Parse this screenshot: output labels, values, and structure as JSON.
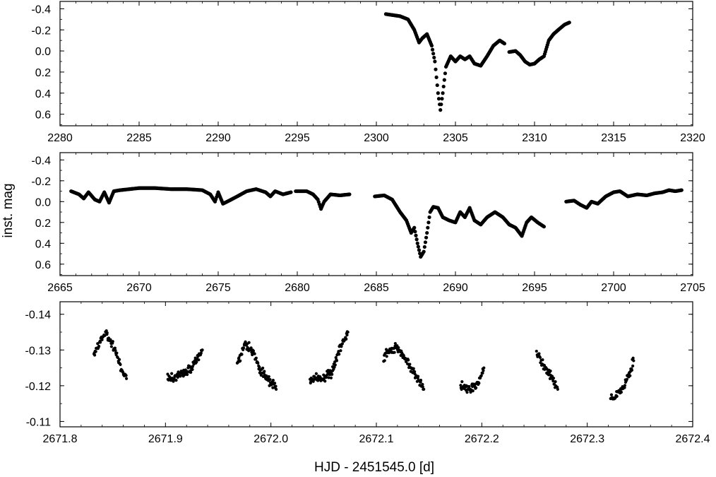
{
  "figure": {
    "ylabel": "inst. mag",
    "xlabel": "HJD - 2451545.0 [d]"
  },
  "chart_data": [
    {
      "type": "scatter",
      "xlim": [
        2280,
        2320
      ],
      "ylim": [
        -0.47,
        0.71
      ],
      "y_inverted": true,
      "xticks": [
        2280,
        2285,
        2290,
        2295,
        2300,
        2305,
        2310,
        2315,
        2320
      ],
      "xtick_labels": [
        "2280",
        "2285",
        "2290",
        "2295",
        "2300",
        "2305",
        "2310",
        "2315",
        "2320"
      ],
      "yticks": [
        -0.4,
        -0.2,
        0.0,
        0.2,
        0.4,
        0.6
      ],
      "ytick_labels": [
        "-0.4",
        "-0.2",
        "0.0",
        "0.2",
        "0.4",
        "0.6"
      ],
      "marker_size": 2.6,
      "point_step": 0.045,
      "series": [
        {
          "segments": [
            [
              [
                2300.6,
                -0.35
              ],
              [
                2301.5,
                -0.33
              ],
              [
                2302.0,
                -0.3
              ],
              [
                2302.4,
                -0.2
              ],
              [
                2302.7,
                -0.08
              ],
              [
                2302.9,
                -0.12
              ],
              [
                2303.2,
                -0.16
              ],
              [
                2303.5,
                -0.05
              ],
              [
                2303.7,
                0.1
              ],
              [
                2303.9,
                0.4
              ],
              [
                2304.05,
                0.56
              ],
              [
                2304.2,
                0.4
              ],
              [
                2304.4,
                0.15
              ],
              [
                2304.7,
                0.05
              ],
              [
                2305.0,
                0.1
              ],
              [
                2305.3,
                0.05
              ],
              [
                2305.6,
                0.08
              ],
              [
                2305.9,
                0.05
              ],
              [
                2306.2,
                0.12
              ],
              [
                2306.6,
                0.14
              ],
              [
                2307.0,
                0.05
              ],
              [
                2307.4,
                -0.05
              ],
              [
                2307.8,
                -0.1
              ],
              [
                2308.1,
                -0.07
              ]
            ],
            [
              [
                2308.4,
                0.01
              ],
              [
                2308.8,
                0.0
              ],
              [
                2309.1,
                0.04
              ],
              [
                2309.4,
                0.1
              ],
              [
                2309.7,
                0.13
              ],
              [
                2310.0,
                0.12
              ],
              [
                2310.3,
                0.08
              ],
              [
                2310.6,
                0.05
              ],
              [
                2310.9,
                -0.1
              ],
              [
                2311.2,
                -0.16
              ],
              [
                2311.5,
                -0.2
              ],
              [
                2311.9,
                -0.25
              ],
              [
                2312.2,
                -0.27
              ]
            ]
          ]
        }
      ]
    },
    {
      "type": "scatter",
      "xlim": [
        2665,
        2705
      ],
      "ylim": [
        -0.47,
        0.71
      ],
      "y_inverted": true,
      "xticks": [
        2665,
        2670,
        2675,
        2680,
        2685,
        2690,
        2695,
        2700,
        2705
      ],
      "xtick_labels": [
        "2665",
        "2670",
        "2675",
        "2680",
        "2685",
        "2690",
        "2695",
        "2700",
        "2705"
      ],
      "yticks": [
        -0.4,
        -0.2,
        0.0,
        0.2,
        0.4,
        0.6
      ],
      "ytick_labels": [
        "-0.4",
        "-0.2",
        "0.0",
        "0.2",
        "0.4",
        "0.6"
      ],
      "marker_size": 2.6,
      "point_step": 0.045,
      "series": [
        {
          "segments": [
            [
              [
                2665.7,
                -0.1
              ],
              [
                2666.2,
                -0.07
              ],
              [
                2666.5,
                -0.03
              ],
              [
                2666.8,
                -0.09
              ],
              [
                2667.2,
                -0.02
              ],
              [
                2667.5,
                0.0
              ],
              [
                2667.8,
                -0.09
              ],
              [
                2668.1,
                0.01
              ],
              [
                2668.4,
                -0.1
              ],
              [
                2668.8,
                -0.11
              ],
              [
                2669.4,
                -0.12
              ],
              [
                2670.0,
                -0.13
              ],
              [
                2671.0,
                -0.13
              ],
              [
                2672.0,
                -0.12
              ],
              [
                2673.0,
                -0.12
              ],
              [
                2674.0,
                -0.11
              ],
              [
                2674.5,
                -0.07
              ],
              [
                2674.8,
                0.0
              ],
              [
                2675.0,
                -0.09
              ],
              [
                2675.3,
                0.02
              ],
              [
                2675.7,
                -0.01
              ],
              [
                2676.2,
                -0.05
              ],
              [
                2676.8,
                -0.1
              ],
              [
                2677.4,
                -0.12
              ],
              [
                2678.0,
                -0.09
              ],
              [
                2678.3,
                -0.05
              ],
              [
                2678.6,
                -0.1
              ],
              [
                2679.1,
                -0.07
              ],
              [
                2679.6,
                -0.09
              ]
            ],
            [
              [
                2679.9,
                -0.1
              ],
              [
                2680.6,
                -0.1
              ],
              [
                2681.0,
                -0.07
              ],
              [
                2681.3,
                -0.02
              ],
              [
                2681.5,
                0.07
              ],
              [
                2681.7,
                0.0
              ],
              [
                2682.1,
                -0.07
              ],
              [
                2682.7,
                -0.06
              ],
              [
                2683.3,
                -0.07
              ]
            ],
            [
              [
                2684.9,
                -0.05
              ],
              [
                2685.5,
                -0.06
              ],
              [
                2686.0,
                -0.02
              ],
              [
                2686.5,
                0.1
              ],
              [
                2686.9,
                0.18
              ],
              [
                2687.2,
                0.3
              ],
              [
                2687.4,
                0.25
              ],
              [
                2687.6,
                0.4
              ],
              [
                2687.8,
                0.53
              ],
              [
                2688.0,
                0.48
              ],
              [
                2688.2,
                0.3
              ],
              [
                2688.4,
                0.1
              ],
              [
                2688.6,
                0.05
              ],
              [
                2688.9,
                0.06
              ],
              [
                2689.2,
                0.15
              ],
              [
                2689.6,
                0.18
              ],
              [
                2690.0,
                0.2
              ],
              [
                2690.3,
                0.1
              ],
              [
                2690.6,
                0.15
              ],
              [
                2690.9,
                0.06
              ],
              [
                2691.2,
                0.18
              ],
              [
                2691.6,
                0.22
              ],
              [
                2692.0,
                0.15
              ],
              [
                2692.5,
                0.1
              ],
              [
                2693.0,
                0.15
              ],
              [
                2693.4,
                0.22
              ],
              [
                2693.8,
                0.25
              ],
              [
                2694.2,
                0.33
              ],
              [
                2694.5,
                0.2
              ],
              [
                2694.8,
                0.15
              ],
              [
                2695.2,
                0.2
              ],
              [
                2695.6,
                0.24
              ]
            ],
            [
              [
                2697.0,
                0.0
              ],
              [
                2697.5,
                -0.01
              ],
              [
                2697.9,
                0.03
              ],
              [
                2698.3,
                0.06
              ],
              [
                2698.6,
                0.0
              ],
              [
                2699.0,
                0.02
              ],
              [
                2699.5,
                -0.05
              ],
              [
                2700.0,
                -0.09
              ],
              [
                2700.4,
                -0.1
              ],
              [
                2700.9,
                -0.05
              ],
              [
                2701.5,
                -0.07
              ],
              [
                2702.1,
                -0.06
              ],
              [
                2702.6,
                -0.08
              ],
              [
                2703.1,
                -0.09
              ],
              [
                2703.5,
                -0.11
              ],
              [
                2703.9,
                -0.1
              ],
              [
                2704.3,
                -0.11
              ]
            ]
          ]
        }
      ]
    },
    {
      "type": "scatter",
      "xlim": [
        2671.8,
        2672.4
      ],
      "ylim": [
        -0.1435,
        -0.1085
      ],
      "y_inverted": true,
      "xticks": [
        2671.8,
        2671.9,
        2672.0,
        2672.1,
        2672.2,
        2672.3,
        2672.4
      ],
      "xtick_labels": [
        "2671.8",
        "2671.9",
        "2672.0",
        "2672.1",
        "2672.2",
        "2672.3",
        "2672.4"
      ],
      "yticks": [
        -0.14,
        -0.13,
        -0.12,
        -0.11
      ],
      "ytick_labels": [
        "-0.14",
        "-0.13",
        "-0.12",
        "-0.11"
      ],
      "marker_size": 2.1,
      "point_step": 0.00045,
      "jitter": 0.0011,
      "series": [
        {
          "segments": [
            [
              [
                2671.832,
                -0.129
              ],
              [
                2671.843,
                -0.135
              ],
              [
                2671.852,
                -0.13
              ],
              [
                2671.858,
                -0.125
              ],
              [
                2671.863,
                -0.122
              ]
            ],
            [
              [
                2671.902,
                -0.122
              ],
              [
                2671.915,
                -0.123
              ],
              [
                2671.925,
                -0.125
              ],
              [
                2671.935,
                -0.13
              ]
            ],
            [
              [
                2671.968,
                -0.126
              ],
              [
                2671.975,
                -0.132
              ],
              [
                2671.982,
                -0.13
              ],
              [
                2671.99,
                -0.124
              ],
              [
                2672.0,
                -0.121
              ],
              [
                2672.005,
                -0.119
              ]
            ],
            [
              [
                2672.037,
                -0.122
              ],
              [
                2672.05,
                -0.122
              ],
              [
                2672.058,
                -0.124
              ],
              [
                2672.065,
                -0.13
              ],
              [
                2672.073,
                -0.135
              ]
            ],
            [
              [
                2672.107,
                -0.128
              ],
              [
                2672.118,
                -0.131
              ],
              [
                2672.125,
                -0.129
              ],
              [
                2672.133,
                -0.125
              ],
              [
                2672.145,
                -0.119
              ]
            ],
            [
              [
                2672.18,
                -0.12
              ],
              [
                2672.19,
                -0.119
              ],
              [
                2672.197,
                -0.121
              ],
              [
                2672.202,
                -0.125
              ]
            ],
            [
              [
                2672.252,
                -0.129
              ],
              [
                2672.258,
                -0.126
              ],
              [
                2672.265,
                -0.123
              ],
              [
                2672.272,
                -0.119
              ]
            ],
            [
              [
                2672.322,
                -0.116
              ],
              [
                2672.33,
                -0.118
              ],
              [
                2672.337,
                -0.121
              ],
              [
                2672.344,
                -0.127
              ]
            ]
          ]
        }
      ]
    }
  ]
}
